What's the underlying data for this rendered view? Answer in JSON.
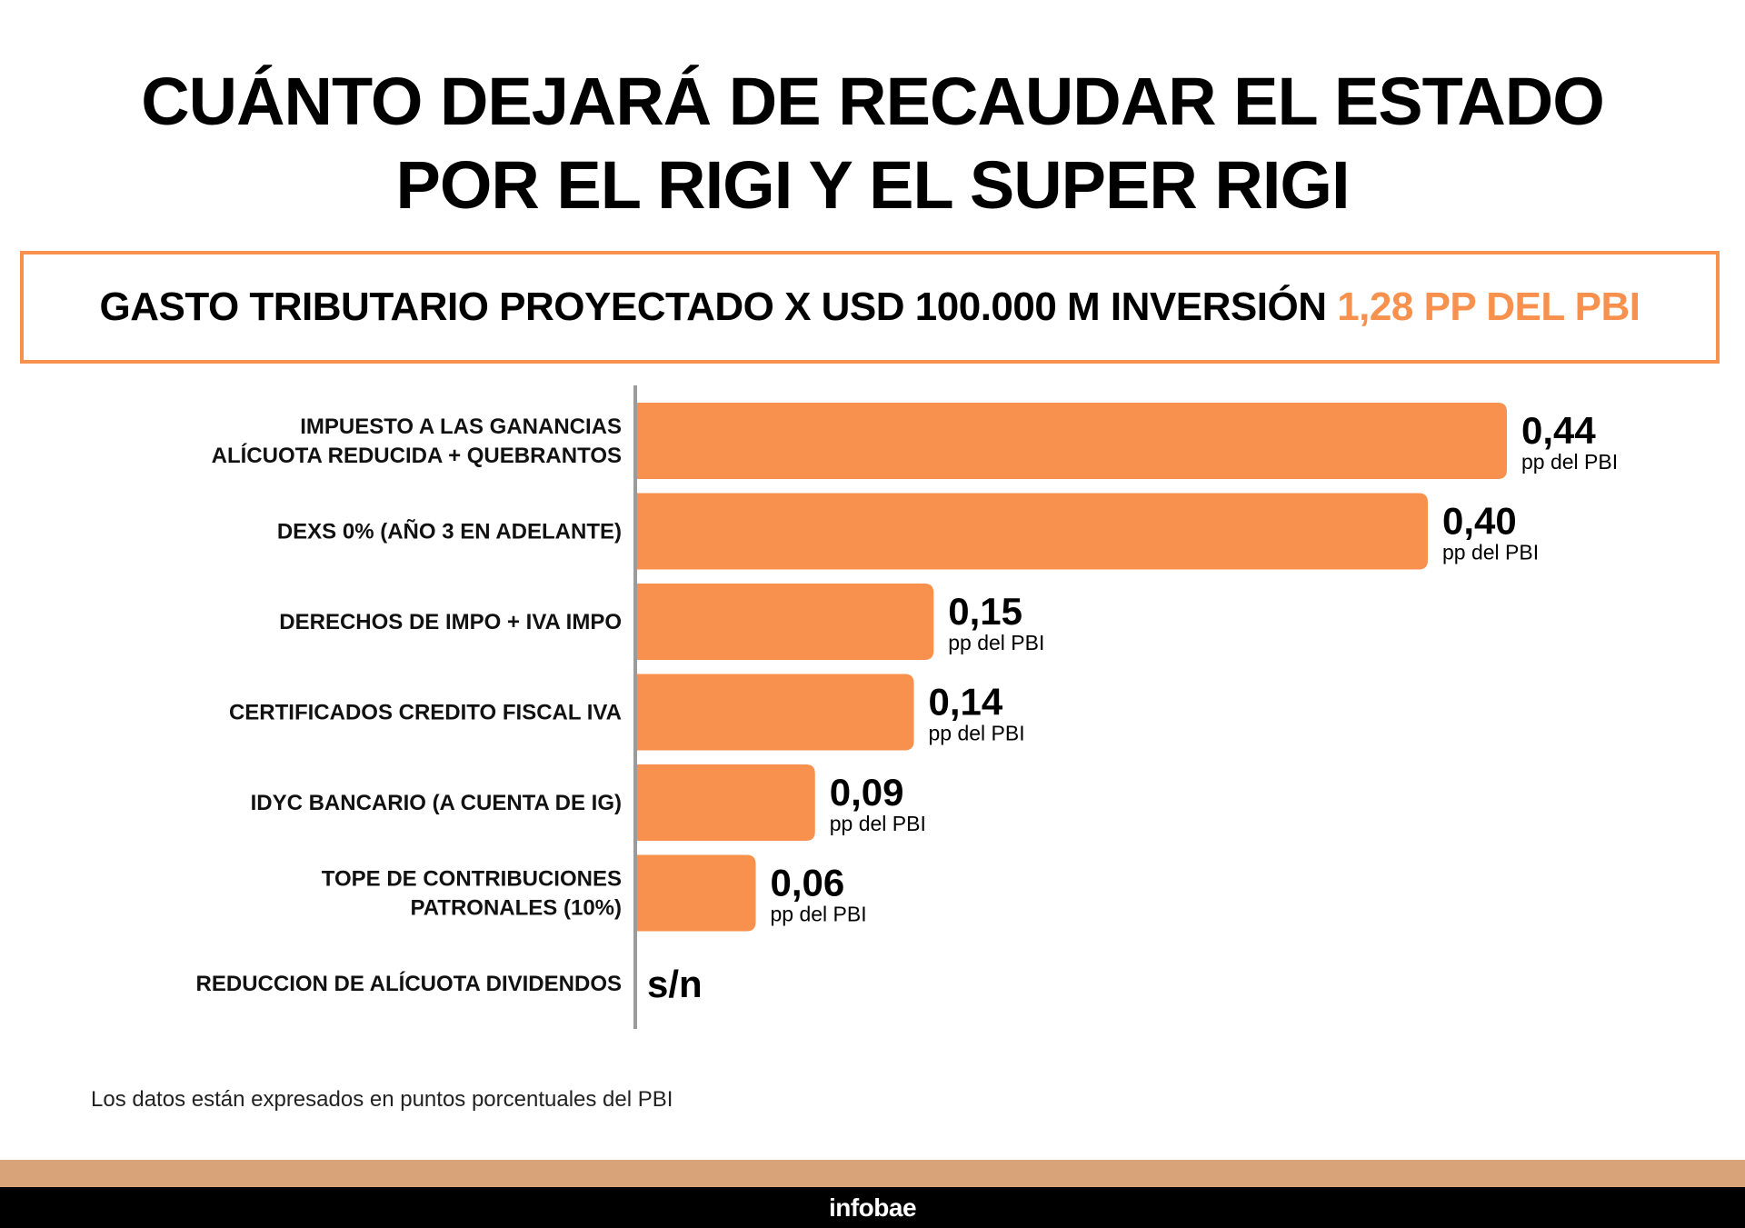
{
  "title": {
    "line1": "CUÁNTO DEJARÁ DE RECAUDAR EL ESTADO",
    "line2": "POR EL RIGI Y EL SUPER RIGI"
  },
  "subtitle": {
    "text": "GASTO TRIBUTARIO PROYECTADO X USD 100.000 M INVERSIÓN ",
    "accent": "1,28 PP DEL PBI",
    "accent_color": "#F7914D"
  },
  "chart_data": {
    "type": "bar",
    "orientation": "horizontal",
    "bar_color": "#F7914D",
    "unit_label": "pp del PBI",
    "categories": [
      [
        "IMPUESTO A LAS GANANCIAS",
        "ALÍCUOTA REDUCIDA + QUEBRANTOS"
      ],
      [
        "DEXS 0% (AÑO 3 EN ADELANTE)"
      ],
      [
        "DERECHOS DE IMPO + IVA IMPO"
      ],
      [
        "CERTIFICADOS CREDITO FISCAL IVA"
      ],
      [
        "IDYC BANCARIO (A CUENTA DE IG)"
      ],
      [
        "TOPE DE CONTRIBUCIONES",
        "PATRONALES (10%)"
      ],
      [
        "REDUCCION DE ALÍCUOTA DIVIDENDOS"
      ]
    ],
    "values": [
      0.44,
      0.4,
      0.15,
      0.14,
      0.09,
      0.06,
      null
    ],
    "value_labels": [
      "0,44",
      "0,40",
      "0,15",
      "0,14",
      "0,09",
      "0,06",
      "s/n"
    ]
  },
  "footnote": "Los datos están expresados en puntos porcentuales del PBI",
  "brand": "infobae",
  "colors": {
    "accent": "#F7914D",
    "footer_band": "#D9A37A",
    "footer_bar": "#000000"
  }
}
